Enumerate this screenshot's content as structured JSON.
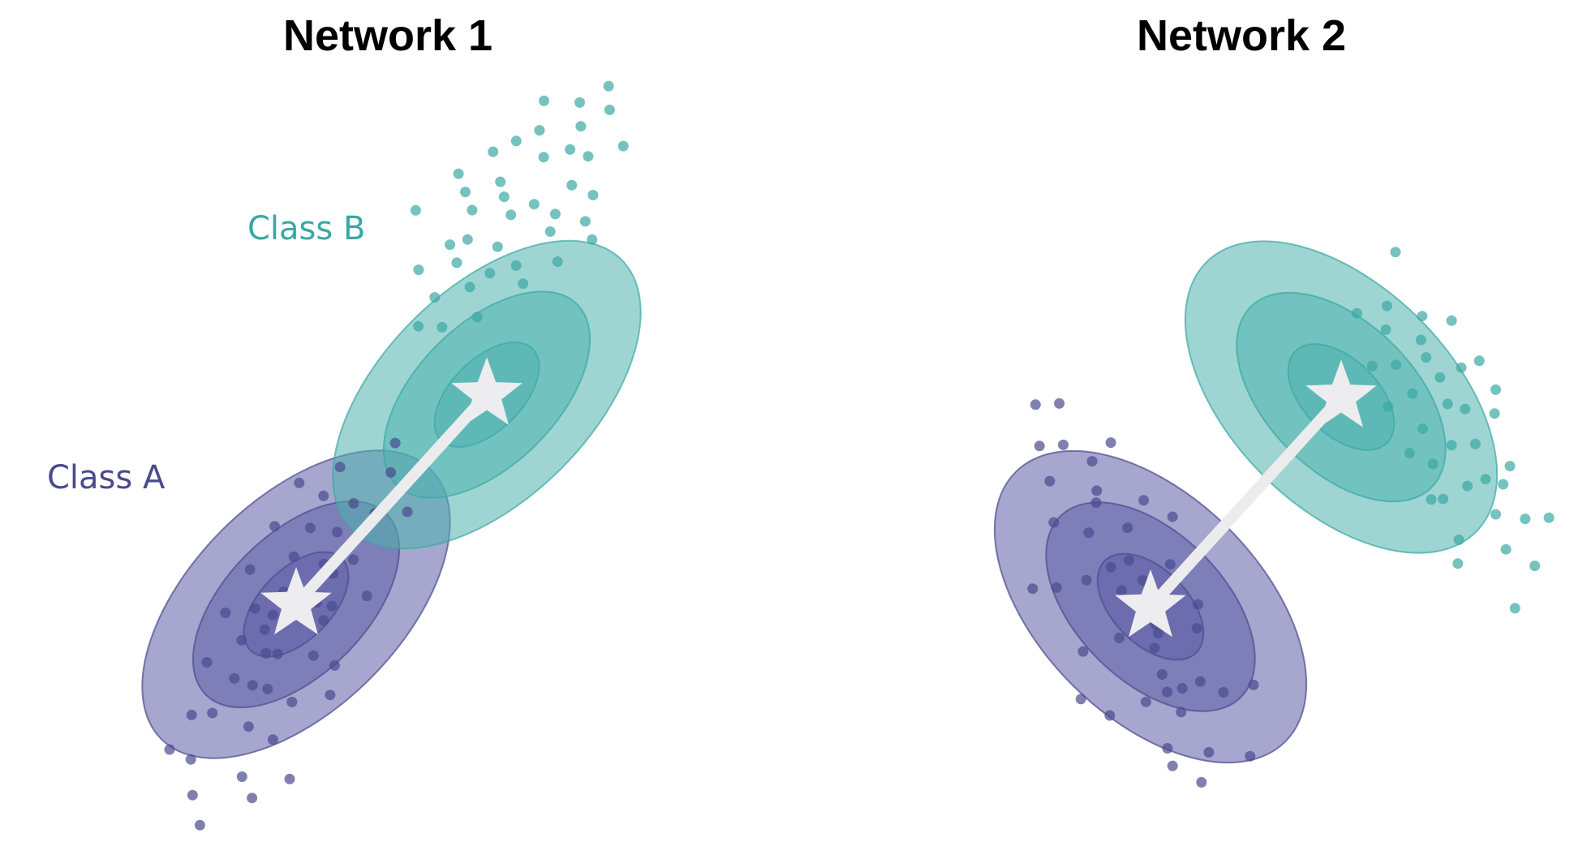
{
  "panels": [
    {
      "title": "Network 1",
      "classes": [
        {
          "label": "Class A",
          "color": "#4a4a8e",
          "fill": "#5c5ca6",
          "center": [
            0.0,
            0.0
          ],
          "angle_deg": -45,
          "semi_axes": [
            1.0,
            0.55
          ],
          "level_scales": [
            1.0,
            0.67,
            0.34
          ],
          "points": [
            [
              -2.6,
              -1.4
            ],
            [
              -2.3,
              -0.8
            ],
            [
              -2.0,
              -1.9
            ],
            [
              -1.7,
              -0.4
            ],
            [
              -1.5,
              -1.2
            ],
            [
              -1.2,
              -0.2
            ],
            [
              -1.0,
              -0.9
            ],
            [
              -0.8,
              0.3
            ],
            [
              -0.6,
              -0.5
            ],
            [
              -0.4,
              0.6
            ],
            [
              -0.2,
              -0.1
            ],
            [
              0.0,
              0.4
            ],
            [
              0.2,
              -0.3
            ],
            [
              0.4,
              0.8
            ],
            [
              0.6,
              0.2
            ],
            [
              0.8,
              1.0
            ],
            [
              1.0,
              0.5
            ],
            [
              1.2,
              1.3
            ],
            [
              1.4,
              0.7
            ],
            [
              1.6,
              1.5
            ],
            [
              -2.8,
              -2.0
            ],
            [
              -2.1,
              -2.4
            ],
            [
              -1.4,
              -1.8
            ],
            [
              -0.9,
              -1.5
            ],
            [
              -0.3,
              -1.1
            ],
            [
              0.3,
              -0.6
            ],
            [
              0.9,
              -0.2
            ],
            [
              1.5,
              0.2
            ],
            [
              2.0,
              0.6
            ],
            [
              2.3,
              1.0
            ],
            [
              -1.9,
              -0.1
            ],
            [
              -1.3,
              0.5
            ],
            [
              -0.7,
              1.0
            ],
            [
              -0.1,
              1.3
            ],
            [
              0.5,
              1.6
            ],
            [
              1.1,
              1.9
            ],
            [
              -2.4,
              -0.3
            ],
            [
              -1.6,
              -2.7
            ],
            [
              -0.5,
              -2.0
            ],
            [
              0.7,
              -1.0
            ],
            [
              1.8,
              -0.3
            ],
            [
              2.4,
              0.2
            ],
            [
              -0.2,
              -1.6
            ],
            [
              0.2,
              0.0
            ],
            [
              -0.5,
              0.1
            ],
            [
              -1.1,
              -0.6
            ],
            [
              -0.7,
              -0.3
            ],
            [
              0.1,
              -0.7
            ],
            [
              0.6,
              -0.1
            ],
            [
              -0.3,
              0.2
            ]
          ]
        },
        {
          "label": "Class B",
          "color": "#3aa8a3",
          "fill": "#4fb3ae",
          "center": [
            1.0,
            1.1
          ],
          "angle_deg": -45,
          "semi_axes": [
            1.0,
            0.55
          ],
          "level_scales": [
            1.0,
            0.67,
            0.34
          ],
          "points": [
            [
              2.2,
              1.8
            ],
            [
              1.8,
              2.5
            ],
            [
              2.6,
              2.9
            ],
            [
              1.4,
              1.6
            ],
            [
              2.0,
              3.2
            ],
            [
              3.0,
              2.2
            ],
            [
              1.2,
              2.8
            ],
            [
              2.4,
              1.2
            ],
            [
              1.6,
              3.6
            ],
            [
              2.8,
              3.4
            ],
            [
              0.8,
              2.0
            ],
            [
              3.2,
              2.8
            ],
            [
              1.0,
              3.0
            ],
            [
              2.2,
              3.8
            ],
            [
              1.8,
              1.0
            ],
            [
              0.6,
              1.4
            ],
            [
              2.6,
              2.0
            ],
            [
              1.4,
              2.2
            ],
            [
              3.4,
              3.2
            ],
            [
              0.4,
              2.4
            ],
            [
              1.9,
              2.9
            ],
            [
              2.5,
              3.6
            ],
            [
              1.1,
              1.9
            ],
            [
              2.9,
              2.6
            ],
            [
              1.5,
              3.2
            ],
            [
              0.9,
              2.6
            ],
            [
              2.1,
              2.3
            ],
            [
              3.1,
              3.8
            ],
            [
              1.3,
              1.2
            ],
            [
              2.7,
              1.5
            ],
            [
              0.2,
              1.8
            ],
            [
              3.6,
              2.6
            ],
            [
              1.7,
              4.0
            ],
            [
              0.5,
              3.1
            ],
            [
              2.3,
              0.8
            ],
            [
              3.8,
              3.0
            ],
            [
              0.0,
              2.2
            ],
            [
              1.0,
              4.1
            ],
            [
              3.4,
              1.8
            ],
            [
              2.0,
              1.6
            ]
          ]
        }
      ]
    },
    {
      "title": "Network 2",
      "classes": [
        {
          "label": "",
          "color": "#4a4a8e",
          "fill": "#5c5ca6",
          "center": [
            0.0,
            0.0
          ],
          "angle_deg": 45,
          "semi_axes": [
            1.0,
            0.58
          ],
          "level_scales": [
            1.0,
            0.67,
            0.34
          ],
          "points": [
            [
              -2.6,
              1.8
            ],
            [
              -2.2,
              1.2
            ],
            [
              -1.8,
              2.0
            ],
            [
              -1.4,
              0.8
            ],
            [
              -1.0,
              1.6
            ],
            [
              -0.6,
              0.4
            ],
            [
              -0.2,
              1.0
            ],
            [
              0.2,
              -0.2
            ],
            [
              0.6,
              0.4
            ],
            [
              1.0,
              -0.8
            ],
            [
              1.4,
              -0.2
            ],
            [
              1.8,
              -1.4
            ],
            [
              2.2,
              -0.8
            ],
            [
              -2.0,
              0.4
            ],
            [
              -1.6,
              -0.2
            ],
            [
              -1.2,
              0.2
            ],
            [
              -0.8,
              -0.6
            ],
            [
              -0.4,
              -0.2
            ],
            [
              0.0,
              -1.0
            ],
            [
              0.4,
              -0.6
            ],
            [
              0.8,
              -1.6
            ],
            [
              1.2,
              -1.2
            ],
            [
              1.6,
              -2.2
            ],
            [
              -2.4,
              0.8
            ],
            [
              -1.0,
              -1.2
            ],
            [
              -0.2,
              -1.8
            ],
            [
              0.6,
              -2.4
            ],
            [
              1.4,
              -2.0
            ],
            [
              -1.8,
              1.4
            ],
            [
              -0.6,
              1.8
            ],
            [
              0.4,
              0.8
            ],
            [
              1.6,
              0.4
            ],
            [
              -2.8,
              1.4
            ],
            [
              -1.2,
              -1.6
            ],
            [
              0.2,
              -2.6
            ],
            [
              2.0,
              -2.0
            ],
            [
              -0.3,
              0.3
            ],
            [
              0.3,
              -0.3
            ],
            [
              -0.7,
              0.0
            ],
            [
              0.0,
              0.5
            ],
            [
              0.7,
              -0.9
            ],
            [
              -1.5,
              1.0
            ],
            [
              1.1,
              -0.4
            ],
            [
              -0.9,
              0.9
            ],
            [
              0.9,
              -1.1
            ]
          ]
        },
        {
          "label": "",
          "color": "#3aa8a3",
          "fill": "#4fb3ae",
          "center": [
            1.0,
            1.1
          ],
          "angle_deg": 45,
          "semi_axes": [
            1.0,
            0.58
          ],
          "level_scales": [
            1.0,
            0.67,
            0.34
          ],
          "points": [
            [
              0.0,
              2.6
            ],
            [
              0.4,
              2.0
            ],
            [
              -0.2,
              1.8
            ],
            [
              0.8,
              2.4
            ],
            [
              0.2,
              1.4
            ],
            [
              1.2,
              1.8
            ],
            [
              0.6,
              1.2
            ],
            [
              1.6,
              1.4
            ],
            [
              1.0,
              0.8
            ],
            [
              2.0,
              1.0
            ],
            [
              1.4,
              0.4
            ],
            [
              2.4,
              0.6
            ],
            [
              1.8,
              0.0
            ],
            [
              2.8,
              0.2
            ],
            [
              0.3,
              3.0
            ],
            [
              -0.4,
              2.2
            ],
            [
              0.9,
              2.8
            ],
            [
              1.5,
              2.2
            ],
            [
              2.1,
              1.6
            ],
            [
              2.7,
              1.0
            ],
            [
              0.5,
              0.6
            ],
            [
              1.1,
              0.2
            ],
            [
              1.7,
              -0.2
            ],
            [
              2.3,
              -0.4
            ],
            [
              -0.6,
              1.6
            ],
            [
              3.2,
              0.4
            ],
            [
              0.0,
              1.0
            ],
            [
              2.9,
              1.4
            ],
            [
              1.3,
              2.6
            ],
            [
              2.5,
              -0.8
            ],
            [
              -0.8,
              3.2
            ],
            [
              3.4,
              -0.6
            ],
            [
              1.0,
              1.6
            ],
            [
              1.4,
              1.0
            ],
            [
              0.7,
              1.9
            ],
            [
              1.9,
              0.6
            ],
            [
              0.2,
              2.2
            ],
            [
              2.2,
              1.2
            ]
          ]
        }
      ]
    }
  ]
}
